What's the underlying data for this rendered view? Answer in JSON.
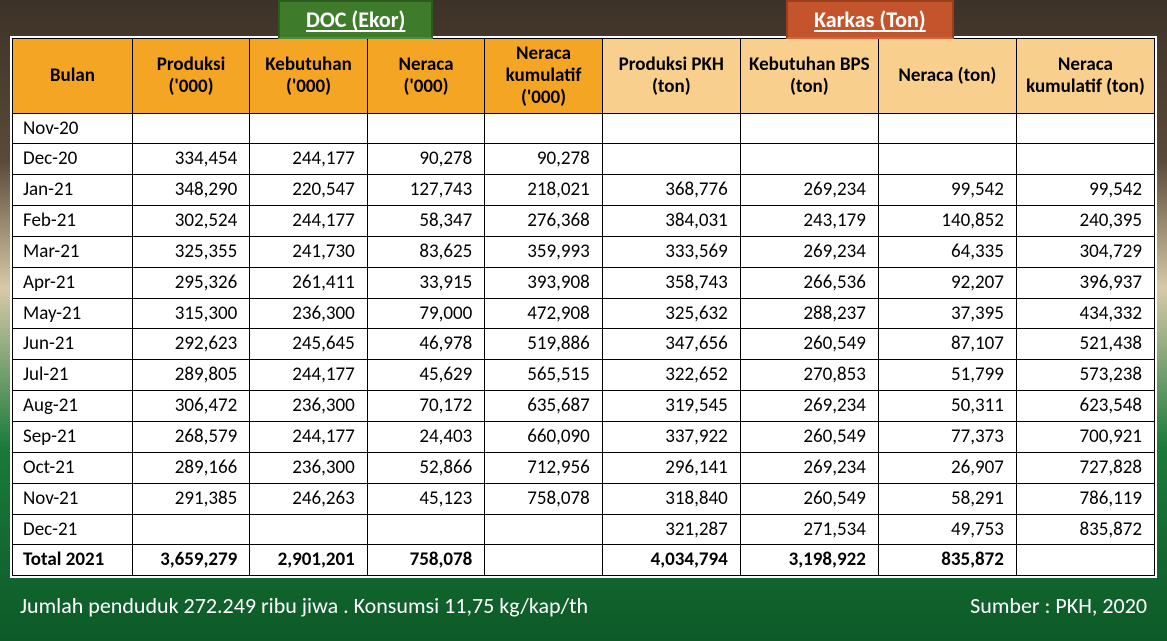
{
  "badges": {
    "doc": "DOC (Ekor)",
    "karkas": "Karkas (Ton)"
  },
  "headers": {
    "bulan": "Bulan",
    "doc": {
      "produksi": "Produksi ('000)",
      "kebutuhan": "Kebutuhan ('000)",
      "neraca": "Neraca ('000)",
      "neraca_kum": "Neraca kumulatif ('000)"
    },
    "karkas": {
      "produksi": "Produksi PKH (ton)",
      "kebutuhan": "Kebutuhan BPS (ton)",
      "neraca": "Neraca (ton)",
      "neraca_kum": "Neraca kumulatif (ton)"
    }
  },
  "rows": [
    {
      "m": "Nov-20",
      "d1": "",
      "d2": "",
      "d3": "",
      "d4": "",
      "k1": "",
      "k2": "",
      "k3": "",
      "k4": ""
    },
    {
      "m": "Dec-20",
      "d1": "334,454",
      "d2": "244,177",
      "d3": "90,278",
      "d4": "90,278",
      "k1": "",
      "k2": "",
      "k3": "",
      "k4": ""
    },
    {
      "m": "Jan-21",
      "d1": "348,290",
      "d2": "220,547",
      "d3": "127,743",
      "d4": "218,021",
      "k1": "368,776",
      "k2": "269,234",
      "k3": "99,542",
      "k4": "99,542"
    },
    {
      "m": "Feb-21",
      "d1": "302,524",
      "d2": "244,177",
      "d3": "58,347",
      "d4": "276,368",
      "k1": "384,031",
      "k2": "243,179",
      "k3": "140,852",
      "k4": "240,395"
    },
    {
      "m": "Mar-21",
      "d1": "325,355",
      "d2": "241,730",
      "d3": "83,625",
      "d4": "359,993",
      "k1": "333,569",
      "k2": "269,234",
      "k3": "64,335",
      "k4": "304,729"
    },
    {
      "m": "Apr-21",
      "d1": "295,326",
      "d2": "261,411",
      "d3": "33,915",
      "d4": "393,908",
      "k1": "358,743",
      "k2": "266,536",
      "k3": "92,207",
      "k4": "396,937"
    },
    {
      "m": "May-21",
      "d1": "315,300",
      "d2": "236,300",
      "d3": "79,000",
      "d4": "472,908",
      "k1": "325,632",
      "k2": "288,237",
      "k3": "37,395",
      "k4": "434,332"
    },
    {
      "m": "Jun-21",
      "d1": "292,623",
      "d2": "245,645",
      "d3": "46,978",
      "d4": "519,886",
      "k1": "347,656",
      "k2": "260,549",
      "k3": "87,107",
      "k4": "521,438"
    },
    {
      "m": "Jul-21",
      "d1": "289,805",
      "d2": "244,177",
      "d3": "45,629",
      "d4": "565,515",
      "k1": "322,652",
      "k2": "270,853",
      "k3": "51,799",
      "k4": "573,238"
    },
    {
      "m": "Aug-21",
      "d1": "306,472",
      "d2": "236,300",
      "d3": "70,172",
      "d4": "635,687",
      "k1": "319,545",
      "k2": "269,234",
      "k3": "50,311",
      "k4": "623,548"
    },
    {
      "m": "Sep-21",
      "d1": "268,579",
      "d2": "244,177",
      "d3": "24,403",
      "d4": "660,090",
      "k1": "337,922",
      "k2": "260,549",
      "k3": "77,373",
      "k4": "700,921"
    },
    {
      "m": "Oct-21",
      "d1": "289,166",
      "d2": "236,300",
      "d3": "52,866",
      "d4": "712,956",
      "k1": "296,141",
      "k2": "269,234",
      "k3": "26,907",
      "k4": "727,828"
    },
    {
      "m": "Nov-21",
      "d1": "291,385",
      "d2": "246,263",
      "d3": "45,123",
      "d4": "758,078",
      "k1": "318,840",
      "k2": "260,549",
      "k3": "58,291",
      "k4": "786,119"
    },
    {
      "m": "Dec-21",
      "d1": "",
      "d2": "",
      "d3": "",
      "d4": "",
      "k1": "321,287",
      "k2": "271,534",
      "k3": "49,753",
      "k4": "835,872"
    }
  ],
  "total": {
    "m": "Total 2021",
    "d1": "3,659,279",
    "d2": "2,901,201",
    "d3": "758,078",
    "d4": "",
    "k1": "4,034,794",
    "k2": "3,198,922",
    "k3": "835,872",
    "k4": ""
  },
  "footer": {
    "left": "Jumlah penduduk  272.249 ribu jiwa . Konsumsi 11,75 kg/kap/th",
    "right": "Sumber : PKH, 2020"
  },
  "style": {
    "hdr_orange": "#f5a524",
    "hdr_peach": "#f8cf8c",
    "doc_badge_bg": "#3e7b2a",
    "karkas_badge_bg": "#c3542c",
    "border_color": "#000000",
    "bg_white": "#ffffff",
    "font_size_cell": 19,
    "font_size_badge": 22,
    "font_size_footer": 22
  }
}
